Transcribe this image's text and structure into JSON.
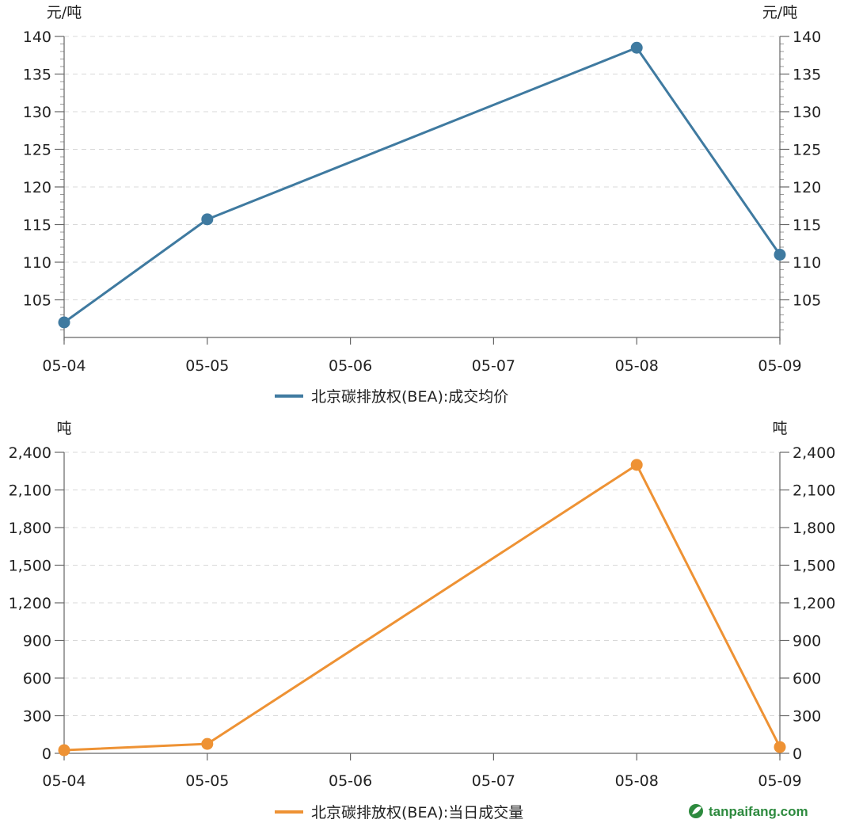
{
  "chart_data": [
    {
      "type": "line",
      "categories": [
        "05-04",
        "05-05",
        "05-06",
        "05-07",
        "05-08",
        "05-09"
      ],
      "series": [
        {
          "name": "北京碳排放权(BEA):成交均价",
          "color": "#3f7aa0",
          "points": [
            {
              "x": "05-04",
              "y": 102
            },
            {
              "x": "05-05",
              "y": 115.7
            },
            {
              "x": "05-08",
              "y": 138.5
            },
            {
              "x": "05-09",
              "y": 111
            }
          ]
        }
      ],
      "ylim": [
        100,
        140
      ],
      "yticks": [
        105,
        110,
        115,
        120,
        125,
        130,
        135,
        140
      ],
      "ytick_labels": [
        "105",
        "110",
        "115",
        "120",
        "125",
        "130",
        "135",
        "140"
      ],
      "y_minor_step": 1,
      "unit_left": "元/吨",
      "unit_right": "元/吨",
      "grid": "horizontal dashed",
      "legend_position": "bottom"
    },
    {
      "type": "line",
      "categories": [
        "05-04",
        "05-05",
        "05-06",
        "05-07",
        "05-08",
        "05-09"
      ],
      "series": [
        {
          "name": "北京碳排放权(BEA):当日成交量",
          "color": "#ee9234",
          "points": [
            {
              "x": "05-04",
              "y": 25
            },
            {
              "x": "05-05",
              "y": 75
            },
            {
              "x": "05-08",
              "y": 2300
            },
            {
              "x": "05-09",
              "y": 50
            }
          ]
        }
      ],
      "ylim": [
        0,
        2400
      ],
      "yticks": [
        0,
        300,
        600,
        900,
        1200,
        1500,
        1800,
        2100,
        2400
      ],
      "ytick_labels": [
        "0",
        "300",
        "600",
        "900",
        "1,200",
        "1,500",
        "1,800",
        "2,100",
        "2,400"
      ],
      "y_minor_step": 0,
      "unit_left": "吨",
      "unit_right": "吨",
      "grid": "horizontal dashed",
      "legend_position": "bottom"
    }
  ],
  "watermark": {
    "text": "tanpaifang.com",
    "icon": "leaf-logo-icon",
    "color": "#2d8a3e"
  }
}
